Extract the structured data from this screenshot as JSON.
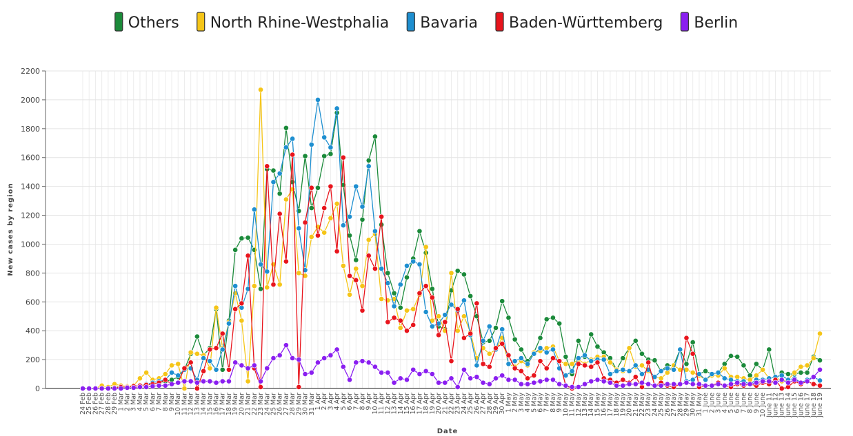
{
  "chart_data": {
    "type": "line",
    "y_label": "New cases by region",
    "x_label": "Date",
    "categories": [
      "24 Feb",
      "25 Feb",
      "26 Feb",
      "27 Feb",
      "28 Feb",
      "29 Feb",
      "1 Mar",
      "2 Mar",
      "3 Mar",
      "4 Mar",
      "5 Mar",
      "6 Mar",
      "7 Mar",
      "8 Mar",
      "9 Mar",
      "10 Mar",
      "11 Mar",
      "12 Mar",
      "13 Mar",
      "14 Mar",
      "15 Mar",
      "16 Mar",
      "17 Mar",
      "18 Mar",
      "19 Mar",
      "20 Mar",
      "21 Mar",
      "22 Mar",
      "23 Mar",
      "24 Mar",
      "25 Mar",
      "26 Mar",
      "27 Mar",
      "28 Mar",
      "29 Mar",
      "30 Mar",
      "31 Mar",
      "1 Apr",
      "2 Apr",
      "3 Apr",
      "4 Apr",
      "5 Apr",
      "6 Apr",
      "7 Apr",
      "8 Apr",
      "9 Apr",
      "10 Apr",
      "11 Apr",
      "12 Apr",
      "13 Apr",
      "14 Apr",
      "15 Apr",
      "16 Apr",
      "17 Apr",
      "18 Apr",
      "19 Apr",
      "20 Apr",
      "21 Apr",
      "22 Apr",
      "23 Apr",
      "24 Apr",
      "25 Apr",
      "26 Apr",
      "27 Apr",
      "28 Apr",
      "29 Apr",
      "30 Apr",
      "1 May",
      "2 May",
      "3 May",
      "4 May",
      "5 May",
      "6 May",
      "7 May",
      "8 May",
      "9 May",
      "10 May",
      "11 May",
      "12 May",
      "13 May",
      "14 May",
      "15 May",
      "16 May",
      "17 May",
      "18 May",
      "19 May",
      "20 May",
      "21 May",
      "22 May",
      "23 May",
      "24 May",
      "25 May",
      "26 May",
      "27 May",
      "28 May",
      "29 May",
      "30 May",
      "31 May",
      "1 June",
      "2 June",
      "3 June",
      "4 June",
      "5 June",
      "6 June",
      "7 June",
      "8 June",
      "9 June",
      "10 June",
      "June 11",
      "June 12",
      "June 13",
      "June 14",
      "June 15",
      "June 16",
      "June 17",
      "June 18",
      "June 19"
    ],
    "series": [
      {
        "name": "Others",
        "color": "#1b8a3a",
        "values": [
          0,
          0,
          0,
          0,
          5,
          10,
          10,
          10,
          15,
          20,
          25,
          30,
          40,
          50,
          60,
          80,
          130,
          240,
          360,
          230,
          280,
          550,
          130,
          470,
          960,
          1040,
          1045,
          960,
          690,
          1520,
          1510,
          1350,
          1805,
          1430,
          1230,
          1610,
          1250,
          1390,
          1610,
          1625,
          1910,
          1410,
          1060,
          890,
          1170,
          1580,
          1745,
          1135,
          800,
          660,
          560,
          770,
          900,
          1090,
          940,
          690,
          430,
          410,
          680,
          815,
          790,
          640,
          500,
          320,
          330,
          420,
          605,
          490,
          340,
          270,
          190,
          250,
          350,
          480,
          490,
          450,
          220,
          100,
          330,
          220,
          375,
          290,
          250,
          210,
          130,
          210,
          280,
          330,
          240,
          200,
          195,
          120,
          160,
          160,
          270,
          170,
          320,
          100,
          120,
          100,
          110,
          170,
          225,
          220,
          160,
          90,
          170,
          130,
          270,
          60,
          110,
          100,
          100,
          110,
          110,
          220,
          195
        ]
      },
      {
        "name": "North Rhine-Westphalia",
        "color": "#f5c518",
        "values": [
          0,
          0,
          0,
          20,
          10,
          30,
          20,
          15,
          20,
          70,
          110,
          60,
          70,
          100,
          160,
          170,
          0,
          250,
          240,
          230,
          140,
          560,
          280,
          460,
          660,
          470,
          50,
          710,
          2070,
          700,
          860,
          720,
          1310,
          1380,
          800,
          780,
          1050,
          1120,
          1080,
          1180,
          1280,
          850,
          650,
          830,
          710,
          1030,
          1070,
          620,
          610,
          620,
          420,
          540,
          550,
          650,
          980,
          470,
          500,
          400,
          800,
          400,
          500,
          390,
          210,
          280,
          240,
          270,
          350,
          170,
          150,
          190,
          160,
          250,
          260,
          280,
          290,
          190,
          170,
          170,
          200,
          170,
          200,
          220,
          220,
          180,
          130,
          120,
          280,
          150,
          160,
          120,
          80,
          70,
          110,
          160,
          130,
          130,
          110,
          90,
          60,
          90,
          90,
          140,
          80,
          80,
          70,
          60,
          90,
          130,
          70,
          80,
          50,
          60,
          110,
          150,
          160,
          210,
          380
        ]
      },
      {
        "name": "Bavaria",
        "color": "#1e8fd0",
        "values": [
          0,
          0,
          0,
          0,
          0,
          0,
          5,
          10,
          15,
          20,
          30,
          40,
          50,
          60,
          110,
          90,
          130,
          140,
          60,
          210,
          190,
          130,
          270,
          450,
          710,
          560,
          690,
          1240,
          860,
          810,
          1430,
          1490,
          1670,
          1730,
          1110,
          820,
          1690,
          2000,
          1740,
          1670,
          1940,
          1130,
          1190,
          1400,
          1260,
          1540,
          1090,
          830,
          730,
          570,
          720,
          850,
          880,
          860,
          530,
          430,
          450,
          510,
          580,
          540,
          610,
          370,
          160,
          330,
          430,
          270,
          410,
          170,
          190,
          210,
          170,
          240,
          280,
          250,
          270,
          140,
          90,
          120,
          210,
          230,
          190,
          200,
          200,
          100,
          120,
          130,
          120,
          160,
          100,
          130,
          80,
          120,
          140,
          130,
          270,
          50,
          60,
          100,
          60,
          100,
          110,
          70,
          60,
          50,
          50,
          30,
          60,
          60,
          70,
          80,
          90,
          60,
          70,
          40,
          60,
          80,
          55
        ]
      },
      {
        "name": "Baden-Württemberg",
        "color": "#e8141c",
        "values": [
          0,
          0,
          0,
          0,
          0,
          5,
          10,
          10,
          15,
          20,
          25,
          30,
          40,
          60,
          30,
          40,
          140,
          180,
          0,
          120,
          270,
          280,
          380,
          130,
          550,
          590,
          920,
          140,
          10,
          1540,
          720,
          1210,
          880,
          1620,
          10,
          1150,
          1390,
          1060,
          1250,
          1400,
          950,
          1600,
          780,
          750,
          540,
          920,
          830,
          1190,
          460,
          490,
          470,
          400,
          440,
          660,
          710,
          630,
          370,
          460,
          190,
          550,
          350,
          380,
          590,
          170,
          150,
          280,
          310,
          230,
          140,
          120,
          70,
          90,
          190,
          140,
          210,
          190,
          20,
          0,
          170,
          160,
          150,
          180,
          70,
          60,
          40,
          60,
          40,
          80,
          10,
          180,
          20,
          40,
          20,
          10,
          30,
          350,
          240,
          10,
          20,
          20,
          40,
          20,
          10,
          30,
          20,
          30,
          20,
          40,
          30,
          60,
          0,
          10,
          50,
          30,
          50,
          30,
          20
        ]
      },
      {
        "name": "Berlin",
        "color": "#8a1ff0",
        "values": [
          0,
          0,
          0,
          0,
          0,
          0,
          0,
          5,
          5,
          10,
          10,
          15,
          20,
          20,
          30,
          40,
          50,
          50,
          40,
          50,
          50,
          40,
          50,
          50,
          180,
          160,
          140,
          160,
          50,
          140,
          210,
          230,
          300,
          210,
          200,
          100,
          110,
          180,
          210,
          230,
          270,
          150,
          60,
          180,
          190,
          180,
          150,
          110,
          110,
          40,
          70,
          60,
          130,
          100,
          120,
          100,
          40,
          40,
          70,
          10,
          130,
          70,
          80,
          40,
          30,
          70,
          90,
          60,
          60,
          30,
          30,
          40,
          50,
          60,
          60,
          30,
          20,
          10,
          10,
          30,
          50,
          60,
          50,
          40,
          20,
          20,
          30,
          30,
          40,
          30,
          20,
          20,
          30,
          30,
          30,
          40,
          30,
          30,
          20,
          20,
          30,
          20,
          30,
          40,
          30,
          30,
          40,
          50,
          50,
          40,
          60,
          40,
          60,
          40,
          50,
          80,
          130
        ]
      }
    ],
    "ylim": [
      0,
      2200
    ],
    "yticks": [
      0,
      200,
      400,
      600,
      800,
      1000,
      1200,
      1400,
      1600,
      1800,
      2000,
      2200
    ],
    "grid": true
  }
}
